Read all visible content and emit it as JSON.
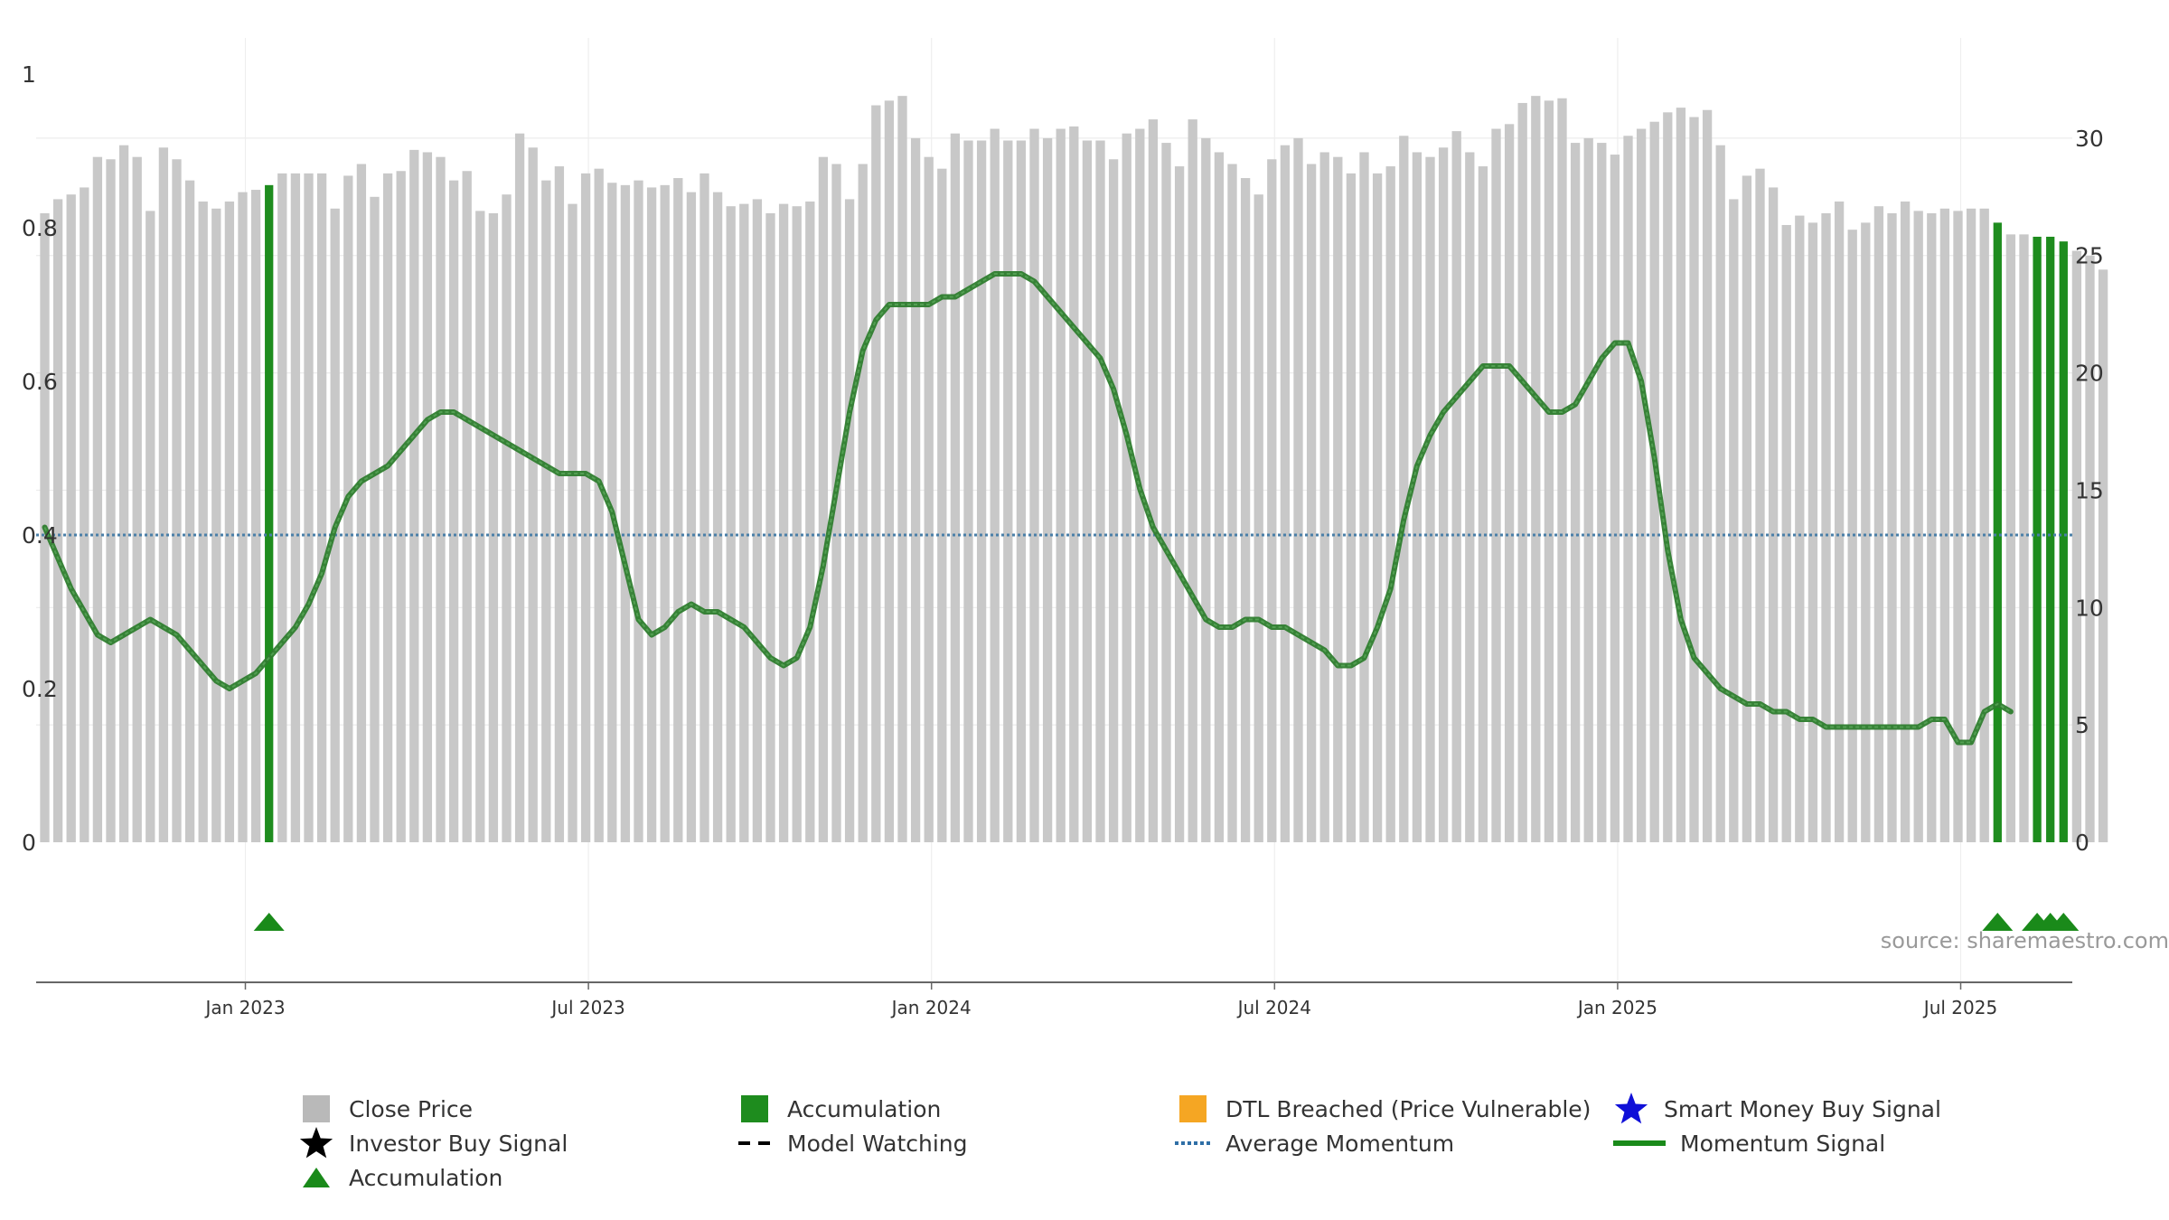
{
  "chart_data": {
    "type": "bar+line",
    "source_text": "source: sharemaestro.com",
    "left_axis": {
      "ticks": [
        0,
        0.2,
        0.4,
        0.6,
        0.8,
        1
      ],
      "labels": [
        "0",
        "0.2",
        "0.4",
        "0.6",
        "0.8",
        "1"
      ],
      "range": [
        0,
        1
      ]
    },
    "right_axis": {
      "ticks": [
        0,
        5,
        10,
        15,
        20,
        25,
        30
      ],
      "labels": [
        "0",
        "5",
        "10",
        "15",
        "20",
        "25",
        "30"
      ],
      "range": [
        0,
        33.5
      ]
    },
    "x_tick_labels": [
      "Jan 2023",
      "Jul 2023",
      "Jan 2024",
      "Jul 2024",
      "Jan 2025",
      "Jul 2025"
    ],
    "x_tick_bars": [
      15,
      41,
      67,
      93,
      119,
      145
    ],
    "series": {
      "close_price": {
        "name": "Close Price",
        "color": "#c8c8c8",
        "axis": "right",
        "values": [
          26.8,
          27.4,
          27.6,
          27.9,
          29.2,
          29.1,
          29.7,
          29.2,
          26.9,
          29.6,
          29.1,
          28.2,
          27.3,
          27.0,
          27.3,
          27.7,
          27.8,
          28.0,
          28.5,
          28.5,
          28.5,
          28.5,
          27.0,
          28.4,
          28.9,
          27.5,
          28.5,
          28.6,
          29.5,
          29.4,
          29.2,
          28.2,
          28.6,
          26.9,
          26.8,
          27.6,
          30.2,
          29.6,
          28.2,
          28.8,
          27.2,
          28.5,
          28.7,
          28.1,
          28.0,
          28.2,
          27.9,
          28.0,
          28.3,
          27.7,
          28.5,
          27.7,
          27.1,
          27.2,
          27.4,
          26.8,
          27.2,
          27.1,
          27.3,
          29.2,
          28.9,
          27.4,
          28.9,
          31.4,
          31.6,
          31.8,
          30.0,
          29.2,
          28.7,
          30.2,
          29.9,
          29.9,
          30.4,
          29.9,
          29.9,
          30.4,
          30.0,
          30.4,
          30.5,
          29.9,
          29.9,
          29.1,
          30.2,
          30.4,
          30.8,
          29.8,
          28.8,
          30.8,
          30.0,
          29.4,
          28.9,
          28.3,
          27.6,
          29.1,
          29.7,
          30.0,
          28.9,
          29.4,
          29.2,
          28.5,
          29.4,
          28.5,
          28.8,
          30.1,
          29.4,
          29.2,
          29.6,
          30.3,
          29.4,
          28.8,
          30.4,
          30.6,
          31.5,
          31.8,
          31.6,
          31.7,
          29.8,
          30.0,
          29.8,
          29.3,
          30.1,
          30.4,
          30.7,
          31.1,
          31.3,
          30.9,
          31.2,
          29.7,
          27.4,
          28.4,
          28.7,
          27.9,
          26.3,
          26.7,
          26.4,
          26.8,
          27.3,
          26.1,
          26.4,
          27.1,
          26.8,
          27.3,
          26.9,
          26.8,
          27.0,
          26.9,
          27.0,
          27.0,
          26.4,
          25.9,
          25.9,
          25.8,
          25.8,
          25.6,
          25.2,
          25.0,
          24.4
        ]
      },
      "accumulation_bars": {
        "name": "Accumulation",
        "color": "#1e8c1e",
        "bar_indices": [
          17,
          148,
          151,
          152,
          153
        ]
      },
      "momentum_signal": {
        "name": "Momentum Signal",
        "color": "#2e8b2e",
        "axis": "left",
        "values": [
          0.41,
          0.37,
          0.33,
          0.3,
          0.27,
          0.26,
          0.27,
          0.28,
          0.29,
          0.28,
          0.27,
          0.25,
          0.23,
          0.21,
          0.2,
          0.21,
          0.22,
          0.24,
          0.26,
          0.28,
          0.31,
          0.35,
          0.41,
          0.45,
          0.47,
          0.48,
          0.49,
          0.51,
          0.53,
          0.55,
          0.56,
          0.56,
          0.55,
          0.54,
          0.53,
          0.52,
          0.51,
          0.5,
          0.49,
          0.48,
          0.48,
          0.48,
          0.47,
          0.43,
          0.36,
          0.29,
          0.27,
          0.28,
          0.3,
          0.31,
          0.3,
          0.3,
          0.29,
          0.28,
          0.26,
          0.24,
          0.23,
          0.24,
          0.28,
          0.36,
          0.46,
          0.56,
          0.64,
          0.68,
          0.7,
          0.7,
          0.7,
          0.7,
          0.71,
          0.71,
          0.72,
          0.73,
          0.74,
          0.74,
          0.74,
          0.73,
          0.71,
          0.69,
          0.67,
          0.65,
          0.63,
          0.59,
          0.53,
          0.46,
          0.41,
          0.38,
          0.35,
          0.32,
          0.29,
          0.28,
          0.28,
          0.29,
          0.29,
          0.28,
          0.28,
          0.27,
          0.26,
          0.25,
          0.23,
          0.23,
          0.24,
          0.28,
          0.33,
          0.42,
          0.49,
          0.53,
          0.56,
          0.58,
          0.6,
          0.62,
          0.62,
          0.62,
          0.6,
          0.58,
          0.56,
          0.56,
          0.57,
          0.6,
          0.63,
          0.65,
          0.65,
          0.6,
          0.5,
          0.38,
          0.29,
          0.24,
          0.22,
          0.2,
          0.19,
          0.18,
          0.18,
          0.17,
          0.17,
          0.16,
          0.16,
          0.15,
          0.15,
          0.15,
          0.15,
          0.15,
          0.15,
          0.15,
          0.15,
          0.16,
          0.16,
          0.13,
          0.13,
          0.17,
          0.18,
          0.17
        ]
      },
      "average_momentum": {
        "name": "Average Momentum",
        "color": "#4a7fa8",
        "axis": "left",
        "value": 0.4
      },
      "accumulation_markers": {
        "name": "Accumulation",
        "color": "#1a8a1a",
        "bar_indices": [
          17,
          148,
          151,
          152,
          153
        ]
      }
    },
    "legend": [
      {
        "label": "Close Price",
        "symbol": "grey-square-icon"
      },
      {
        "label": "Accumulation",
        "symbol": "green-square-icon"
      },
      {
        "label": "DTL Breached (Price Vulnerable)",
        "symbol": "orange-square-icon"
      },
      {
        "label": "Smart Money Buy Signal",
        "symbol": "blue-star-icon"
      },
      {
        "label": "Investor Buy Signal",
        "symbol": "black-star-icon"
      },
      {
        "label": "Model Watching",
        "symbol": "black-dashed-line-icon"
      },
      {
        "label": "Average Momentum",
        "symbol": "blue-dotted-line-icon"
      },
      {
        "label": "Momentum Signal",
        "symbol": "green-solid-line-icon"
      },
      {
        "label": "Accumulation",
        "symbol": "green-triangle-icon"
      }
    ],
    "colors": {
      "grey_square": "#b9b9b9",
      "green_square": "#1e8c1e",
      "orange_square": "#f5a623",
      "blue_star": "#1010d8",
      "black_star": "#000000",
      "triangle": "#1a8a1a"
    }
  }
}
